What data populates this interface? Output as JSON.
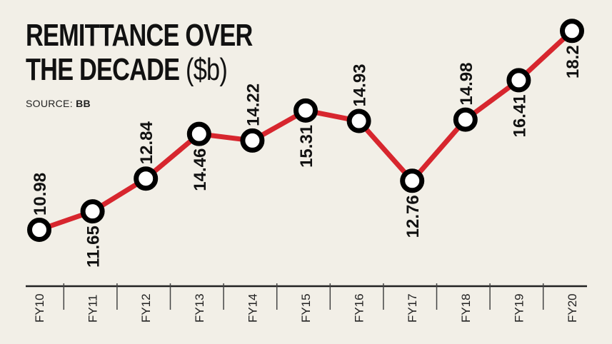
{
  "header": {
    "title_line1": "REMITTANCE  OVER",
    "title_line2_main": "THE DECADE ",
    "title_line2_unit": "($b)",
    "source_label": "SOURCE: ",
    "source_value": "BB"
  },
  "colors": {
    "background": "#f2efe7",
    "line": "#d7262e",
    "marker_stroke": "#000000",
    "marker_fill": "#ffffff",
    "text": "#111111"
  },
  "chart_data": {
    "type": "line",
    "title": "REMITTANCE OVER THE DECADE ($b)",
    "source": "BB",
    "xlabel": "",
    "ylabel": "$b",
    "categories": [
      "FY10",
      "FY11",
      "FY12",
      "FY13",
      "FY14",
      "FY15",
      "FY16",
      "FY17",
      "FY18",
      "FY19",
      "FY20"
    ],
    "series": [
      {
        "name": "Remittance ($b)",
        "values": [
          10.98,
          11.65,
          12.84,
          14.46,
          14.22,
          15.31,
          14.93,
          12.76,
          14.98,
          16.41,
          18.2
        ]
      }
    ],
    "value_labels": [
      "10.98",
      "11.65",
      "12.84",
      "14.46",
      "14.22",
      "15.31",
      "14.93",
      "12.76",
      "14.98",
      "16.41",
      "18.2"
    ],
    "label_position": [
      "above",
      "below",
      "above",
      "below",
      "above",
      "below",
      "above",
      "below",
      "above",
      "below",
      "below"
    ],
    "grid": false,
    "legend": "none"
  }
}
